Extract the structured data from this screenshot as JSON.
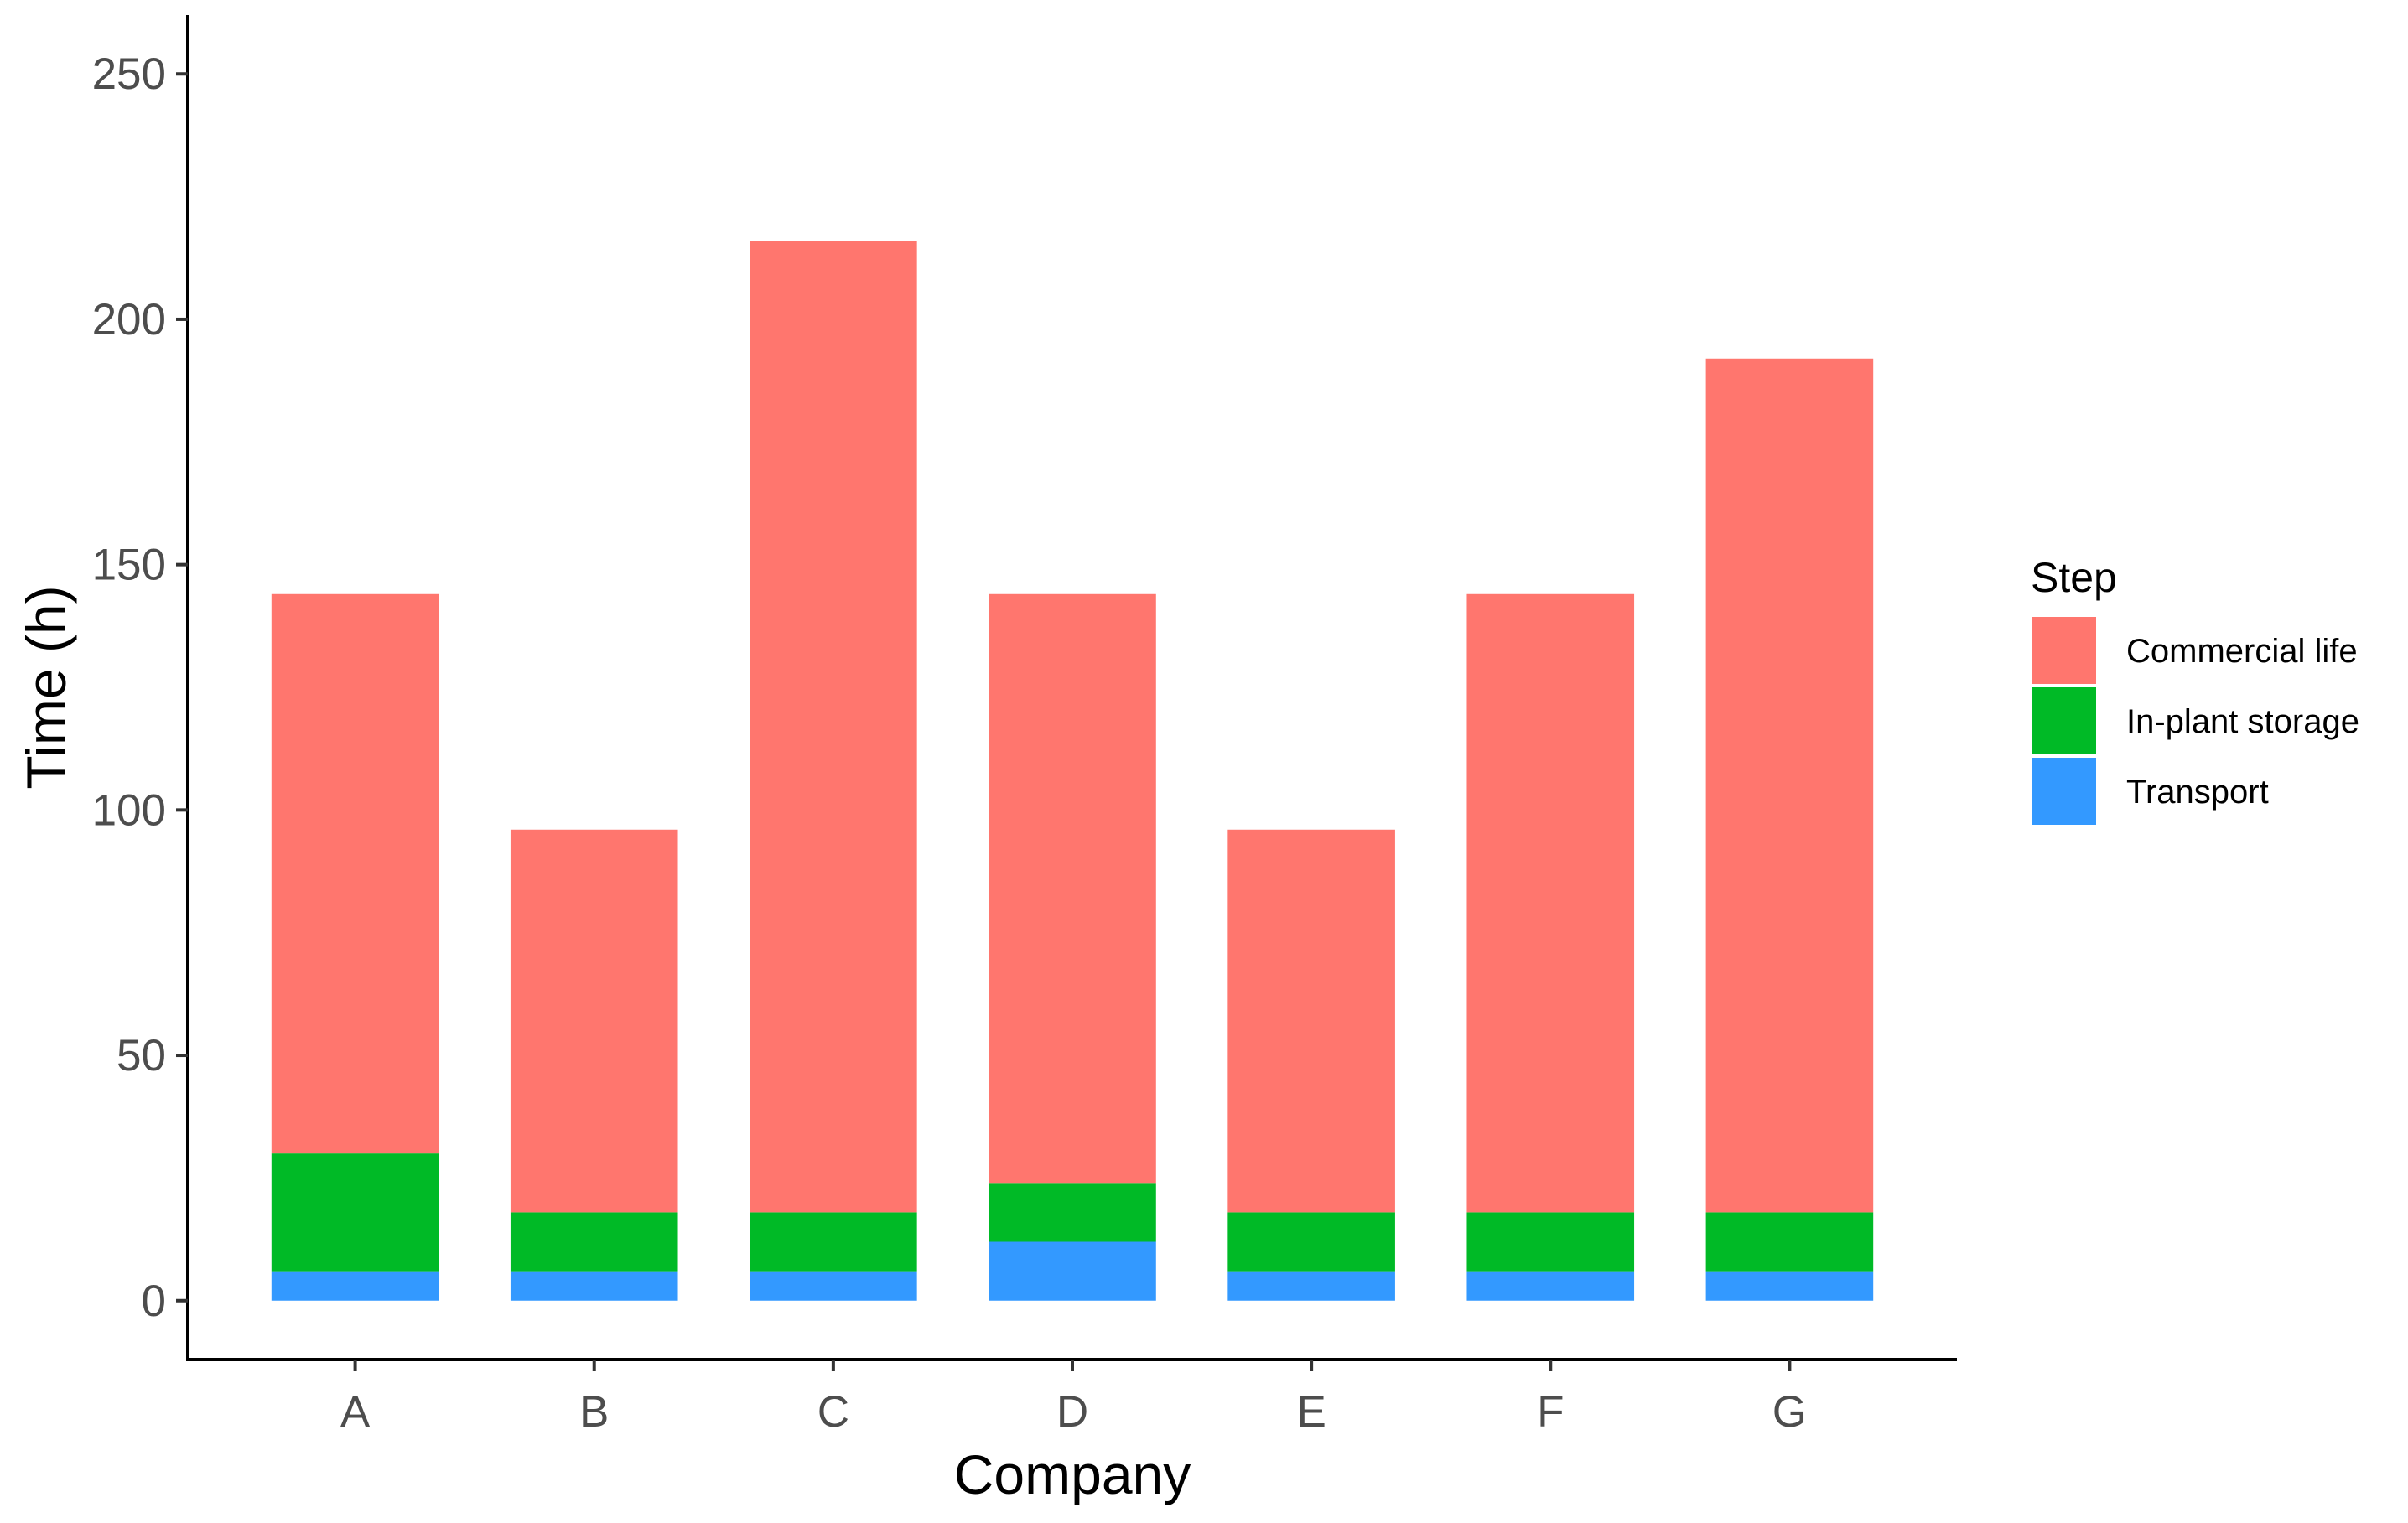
{
  "chart_data": {
    "type": "bar",
    "stacked": true,
    "xlabel": "Company",
    "ylabel": "Time (h)",
    "categories": [
      "A",
      "B",
      "C",
      "D",
      "E",
      "F",
      "G"
    ],
    "ylim": [
      -12,
      262
    ],
    "yticks": [
      0,
      50,
      100,
      150,
      200,
      250
    ],
    "grid": false,
    "legend": {
      "title": "Step",
      "position": "right"
    },
    "series": [
      {
        "name": "Transport",
        "color": "#3399FF",
        "values": [
          6,
          6,
          6,
          12,
          6,
          6,
          6
        ]
      },
      {
        "name": "In-plant storage",
        "color": "#00BA26",
        "values": [
          24,
          12,
          12,
          12,
          12,
          12,
          12
        ]
      },
      {
        "name": "Commercial life",
        "color": "#FF766E",
        "values": [
          114,
          78,
          198,
          120,
          78,
          126,
          174
        ]
      }
    ],
    "legend_order": [
      "Commercial life",
      "In-plant storage",
      "Transport"
    ]
  }
}
